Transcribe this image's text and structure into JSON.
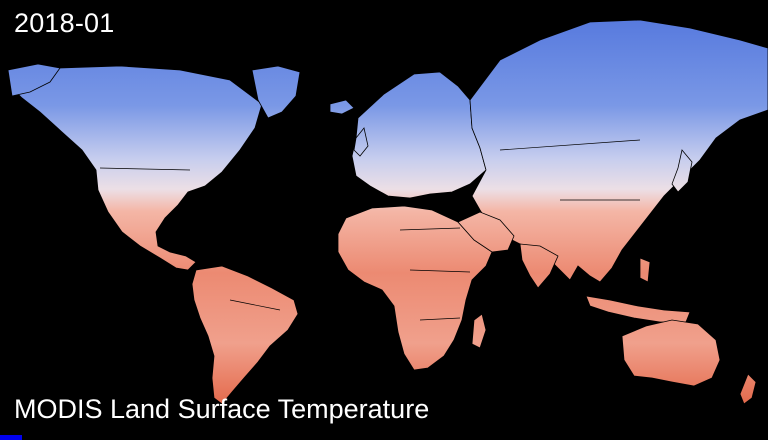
{
  "frame": {
    "date": "2018-01"
  },
  "caption": {
    "title": "MODIS Land Surface Temperature"
  },
  "colors": {
    "background": "#000000",
    "cold": "#5b7fe0",
    "mild": "#e6e2ee",
    "warm": "#f0a090",
    "hot": "#e0553a",
    "borders": "#000000",
    "progress": "#0000ee"
  },
  "animation": {
    "progress_fraction": 0.028
  }
}
